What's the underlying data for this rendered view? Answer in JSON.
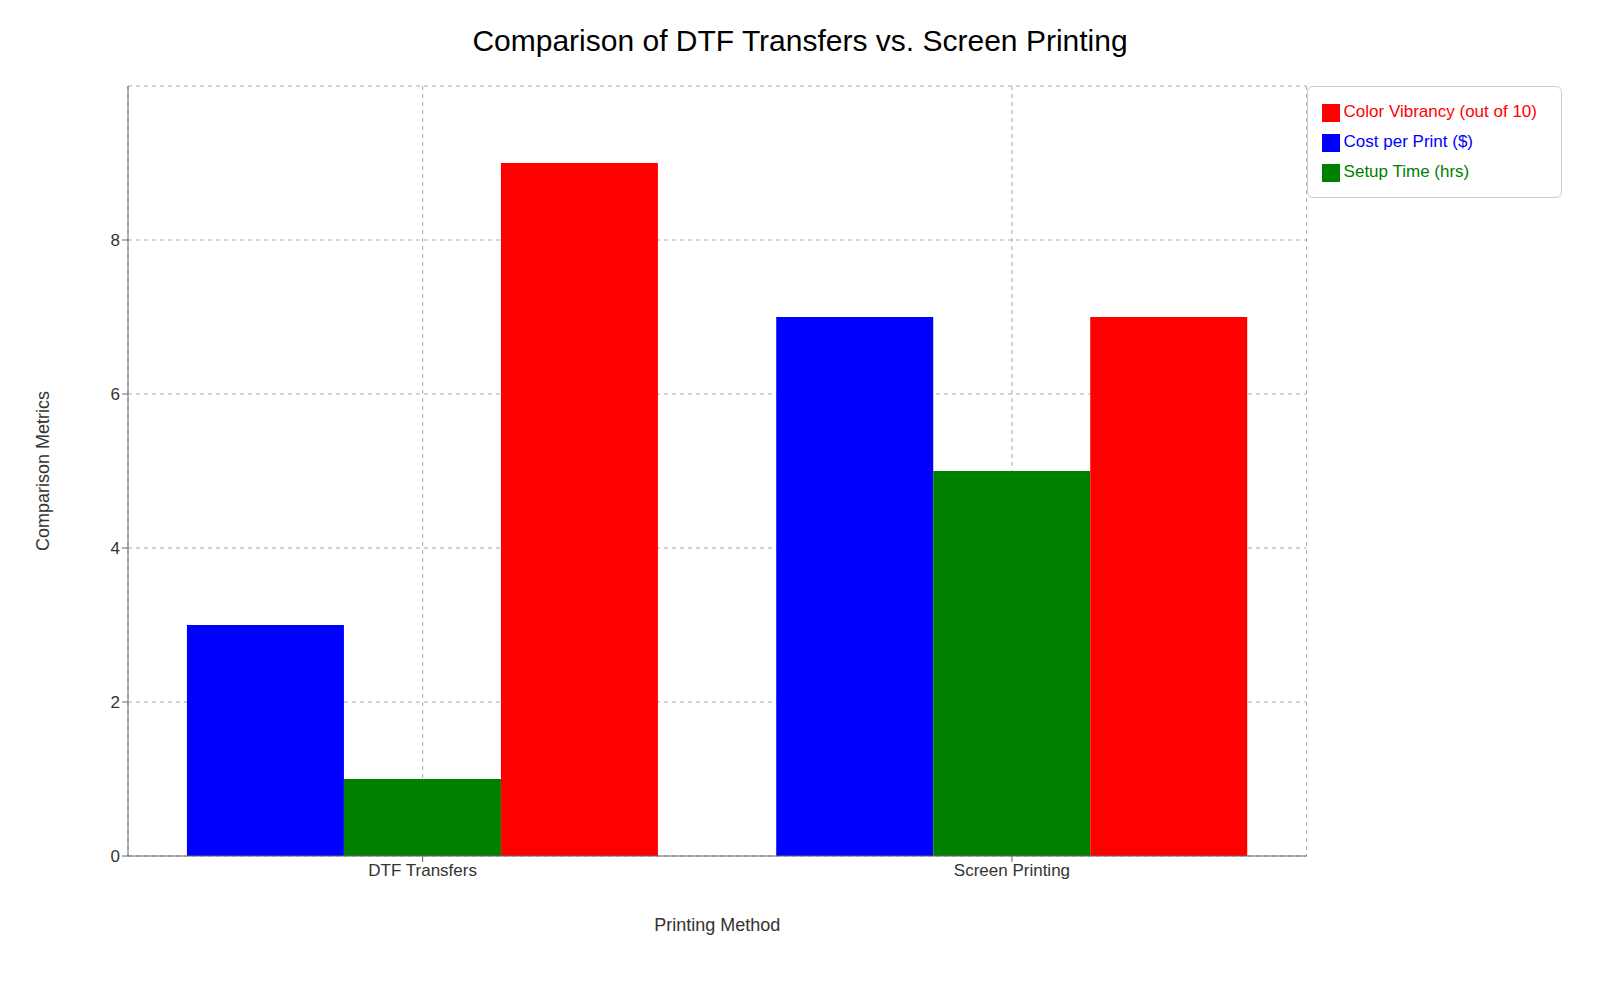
{
  "chart_data": {
    "type": "bar",
    "title": "Comparison of DTF Transfers vs. Screen Printing",
    "x_label": "Printing Method",
    "y_label": "Comparison Metrics",
    "categories": [
      "DTF Transfers",
      "Screen Printing"
    ],
    "series": [
      {
        "name": "Cost per Print ($)",
        "color": "#0000ff",
        "values": [
          3,
          7
        ]
      },
      {
        "name": "Setup Time (hrs)",
        "color": "#008000",
        "values": [
          1,
          5
        ]
      },
      {
        "name": "Color Vibrancy (out of 10)",
        "color": "#ff0000",
        "values": [
          9,
          7
        ]
      }
    ],
    "ylim": [
      0,
      10
    ],
    "yticks": [
      0,
      2,
      4,
      6,
      8
    ],
    "grid": true,
    "legend": "upper right"
  }
}
